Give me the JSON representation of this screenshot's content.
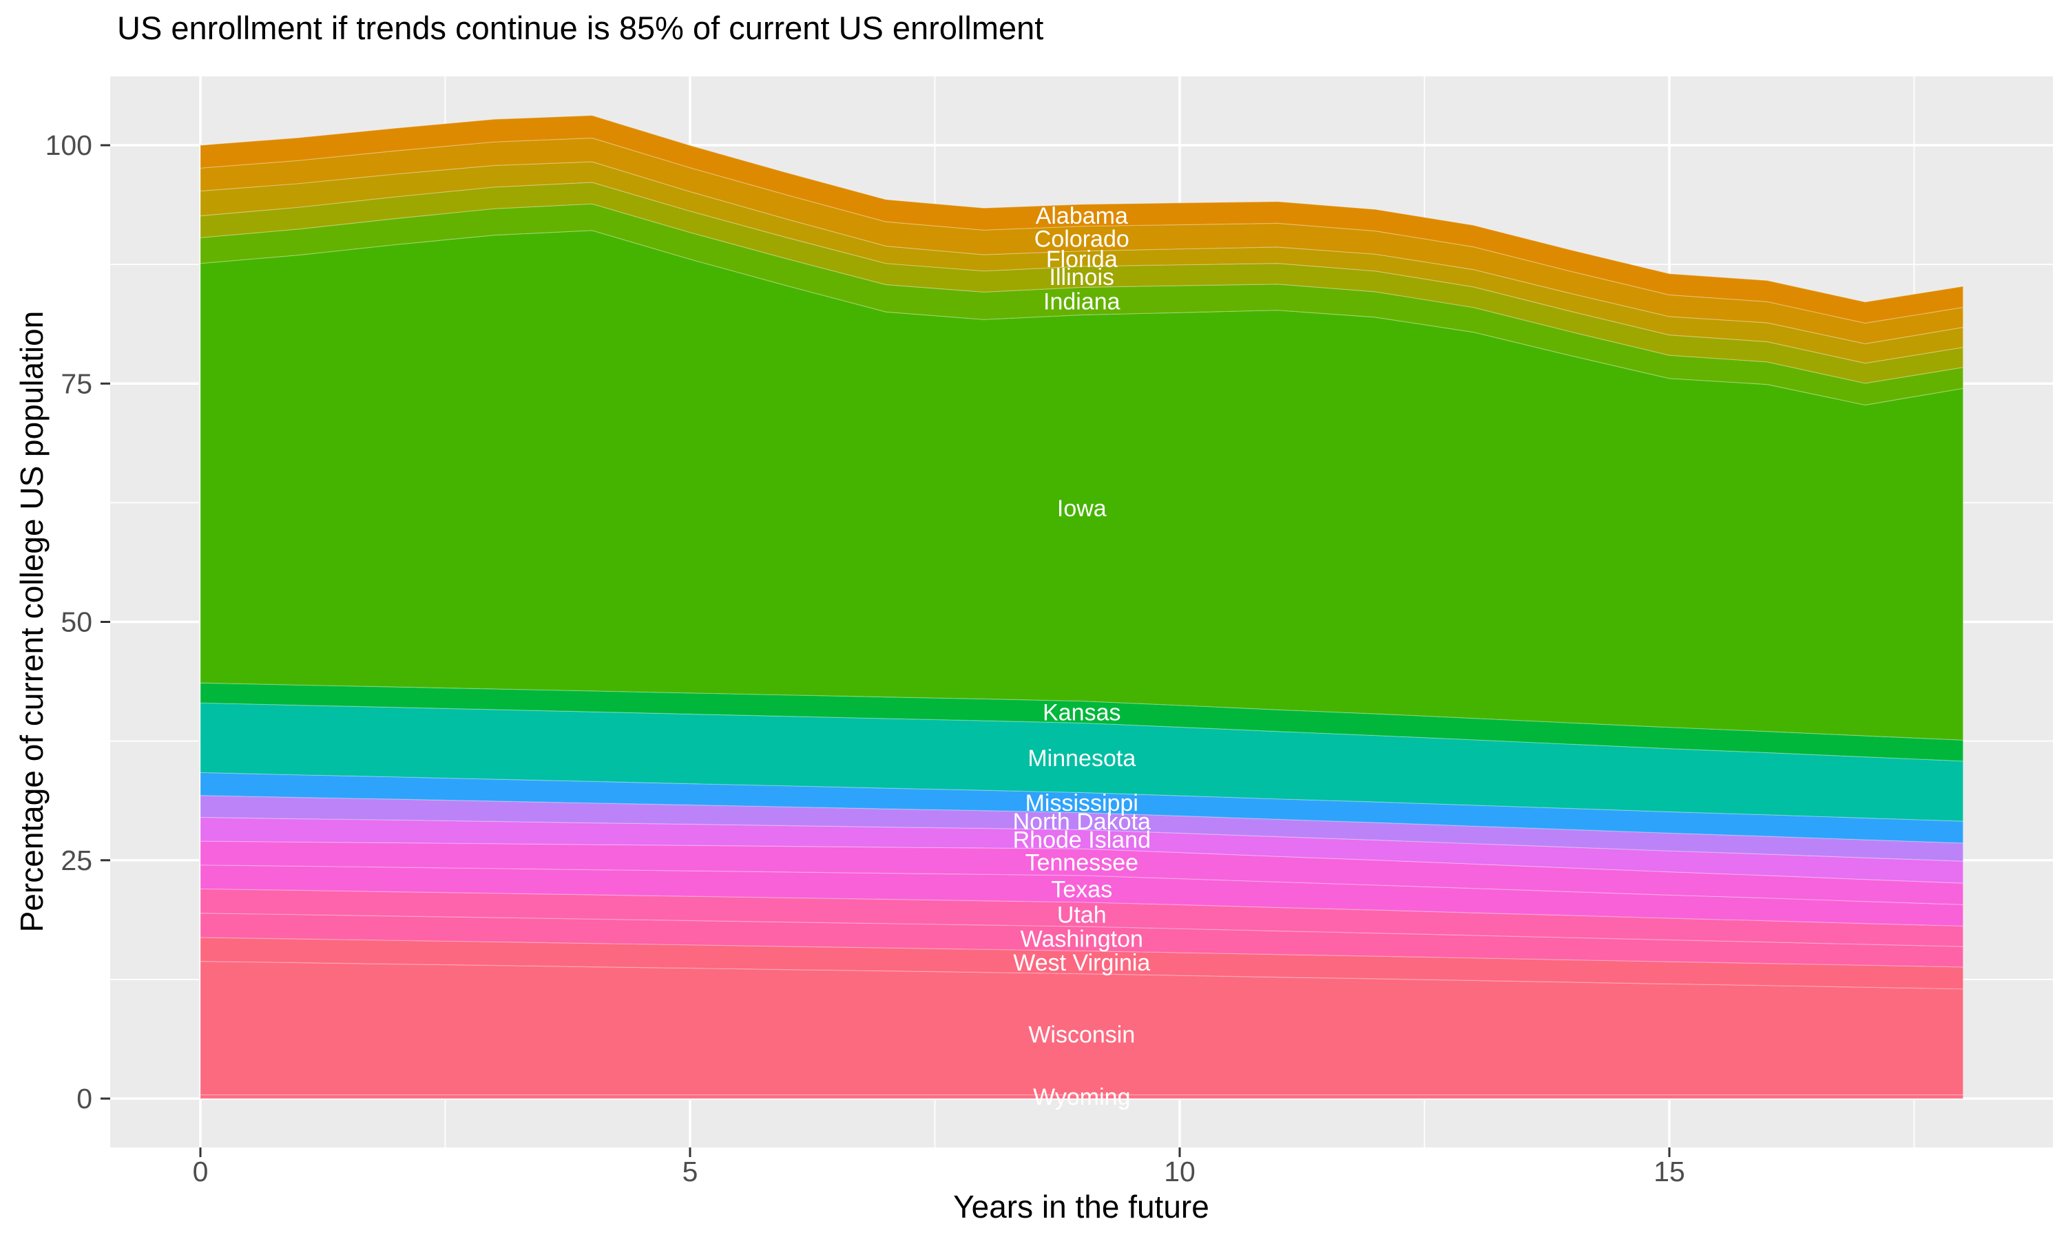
{
  "title": "US enrollment if trends continue is 85% of current US enrollment",
  "chart_data": {
    "type": "area",
    "stacked": true,
    "title": "US enrollment if trends continue is 85% of current US enrollment",
    "xlabel": "Years in the future",
    "ylabel": "Percentage of current college US population",
    "xlim": [
      0,
      18
    ],
    "ylim": [
      0,
      103.1
    ],
    "x_ticks": [
      0,
      5,
      10,
      15
    ],
    "y_ticks": [
      0,
      25,
      50,
      75,
      100
    ],
    "x_minor_ticks": [
      2.5,
      7.5,
      12.5,
      17.5
    ],
    "y_minor_ticks": [
      12.5,
      37.5,
      62.5,
      87.5
    ],
    "grid": "white major and minor gridlines on grey panel",
    "panel_color": "#EBEBEB",
    "legend_position": "none",
    "series_label_x": 9,
    "series_label_color": "#ffffff",
    "x": [
      0,
      1,
      2,
      3,
      4,
      5,
      6,
      7,
      8,
      9,
      10,
      11,
      12,
      13,
      14,
      15,
      16,
      17,
      18
    ],
    "series": [
      {
        "name": "Alabama",
        "color": "#DE8A00",
        "values": [
          2.4,
          2.39,
          2.38,
          2.37,
          2.36,
          2.34,
          2.33,
          2.32,
          2.31,
          2.3,
          2.29,
          2.28,
          2.27,
          2.26,
          2.24,
          2.23,
          2.22,
          2.21,
          2.2
        ]
      },
      {
        "name": "Colorado",
        "color": "#D19300",
        "values": [
          2.4,
          2.42,
          2.44,
          2.47,
          2.49,
          2.51,
          2.53,
          2.56,
          2.58,
          2.6,
          2.54,
          2.49,
          2.43,
          2.38,
          2.32,
          2.27,
          2.21,
          2.16,
          2.1
        ]
      },
      {
        "name": "Florida",
        "color": "#BF9C00",
        "values": [
          2.6,
          2.49,
          2.38,
          2.27,
          2.16,
          2.04,
          1.93,
          1.82,
          1.71,
          1.6,
          1.66,
          1.71,
          1.77,
          1.82,
          1.88,
          1.93,
          1.99,
          2.04,
          2.1
        ]
      },
      {
        "name": "Illinois",
        "color": "#9EA700",
        "values": [
          2.3,
          2.29,
          2.28,
          2.27,
          2.26,
          2.24,
          2.23,
          2.22,
          2.21,
          2.2,
          2.19,
          2.18,
          2.17,
          2.16,
          2.14,
          2.13,
          2.12,
          2.11,
          2.1
        ]
      },
      {
        "name": "Indiana",
        "color": "#63B200",
        "values": [
          2.7,
          2.72,
          2.74,
          2.77,
          2.79,
          2.81,
          2.83,
          2.86,
          2.88,
          2.9,
          2.82,
          2.74,
          2.67,
          2.59,
          2.51,
          2.43,
          2.36,
          2.28,
          2.2
        ]
      },
      {
        "name": "Iowa",
        "color": "#45B400",
        "values": [
          44.0,
          45.1,
          46.4,
          47.6,
          48.3,
          45.5,
          42.9,
          40.4,
          39.8,
          40.5,
          41.2,
          41.9,
          41.6,
          40.5,
          38.5,
          36.6,
          36.4,
          34.7,
          36.9
        ]
      },
      {
        "name": "Kansas",
        "color": "#00B73B",
        "values": [
          2.1,
          2.12,
          2.14,
          2.17,
          2.19,
          2.21,
          2.23,
          2.26,
          2.28,
          2.3,
          2.29,
          2.28,
          2.27,
          2.26,
          2.24,
          2.23,
          2.22,
          2.21,
          2.2
        ]
      },
      {
        "name": "Minnesota",
        "color": "#00BFA2",
        "values": [
          7.3,
          7.3,
          7.3,
          7.3,
          7.3,
          7.3,
          7.3,
          7.3,
          7.3,
          7.3,
          7.19,
          7.08,
          6.97,
          6.86,
          6.74,
          6.63,
          6.52,
          6.41,
          6.3
        ]
      },
      {
        "name": "Mississippi",
        "color": "#2EA3FB",
        "values": [
          2.4,
          2.37,
          2.33,
          2.3,
          2.27,
          2.23,
          2.2,
          2.17,
          2.13,
          2.1,
          2.12,
          2.14,
          2.17,
          2.19,
          2.21,
          2.23,
          2.26,
          2.28,
          2.3
        ]
      },
      {
        "name": "North Dakota",
        "color": "#BC83F8",
        "values": [
          2.3,
          2.24,
          2.19,
          2.13,
          2.08,
          2.02,
          1.97,
          1.91,
          1.86,
          1.8,
          1.81,
          1.82,
          1.83,
          1.84,
          1.86,
          1.87,
          1.88,
          1.89,
          1.9
        ]
      },
      {
        "name": "Rhode Island",
        "color": "#E66FF2",
        "values": [
          2.5,
          2.44,
          2.39,
          2.33,
          2.28,
          2.22,
          2.17,
          2.11,
          2.06,
          2.0,
          2.03,
          2.07,
          2.1,
          2.13,
          2.17,
          2.2,
          2.23,
          2.27,
          2.3
        ]
      },
      {
        "name": "Tennessee",
        "color": "#F763DC",
        "values": [
          2.5,
          2.53,
          2.57,
          2.6,
          2.63,
          2.67,
          2.7,
          2.73,
          2.77,
          2.8,
          2.74,
          2.68,
          2.62,
          2.56,
          2.49,
          2.43,
          2.37,
          2.31,
          2.25
        ]
      },
      {
        "name": "Texas",
        "color": "#F961D8",
        "values": [
          2.5,
          2.53,
          2.57,
          2.6,
          2.63,
          2.67,
          2.7,
          2.73,
          2.77,
          2.8,
          2.74,
          2.68,
          2.62,
          2.56,
          2.49,
          2.43,
          2.37,
          2.31,
          2.25
        ]
      },
      {
        "name": "Utah",
        "color": "#FD64AC",
        "values": [
          2.55,
          2.55,
          2.55,
          2.55,
          2.55,
          2.55,
          2.55,
          2.55,
          2.55,
          2.55,
          2.51,
          2.46,
          2.42,
          2.37,
          2.33,
          2.28,
          2.24,
          2.19,
          2.15
        ]
      },
      {
        "name": "Washington",
        "color": "#FD63A6",
        "values": [
          2.55,
          2.55,
          2.55,
          2.55,
          2.55,
          2.55,
          2.55,
          2.55,
          2.55,
          2.55,
          2.51,
          2.46,
          2.42,
          2.37,
          2.33,
          2.28,
          2.24,
          2.19,
          2.15
        ]
      },
      {
        "name": "West Virginia",
        "color": "#FC6880",
        "values": [
          2.5,
          2.49,
          2.48,
          2.47,
          2.46,
          2.44,
          2.43,
          2.42,
          2.41,
          2.4,
          2.39,
          2.38,
          2.37,
          2.36,
          2.34,
          2.33,
          2.32,
          2.31,
          2.3
        ]
      },
      {
        "name": "Wisconsin",
        "color": "#FC6A80",
        "values": [
          14.0,
          13.86,
          13.71,
          13.57,
          13.42,
          13.28,
          13.13,
          12.99,
          12.84,
          12.7,
          12.52,
          12.34,
          12.17,
          11.99,
          11.81,
          11.63,
          11.46,
          11.28,
          11.1
        ]
      },
      {
        "name": "Wyoming",
        "color": "#FD6C83",
        "values": [
          0.4,
          0.4,
          0.4,
          0.4,
          0.4,
          0.4,
          0.4,
          0.4,
          0.4,
          0.4,
          0.4,
          0.4,
          0.4,
          0.4,
          0.4,
          0.4,
          0.4,
          0.4,
          0.4
        ]
      }
    ]
  }
}
